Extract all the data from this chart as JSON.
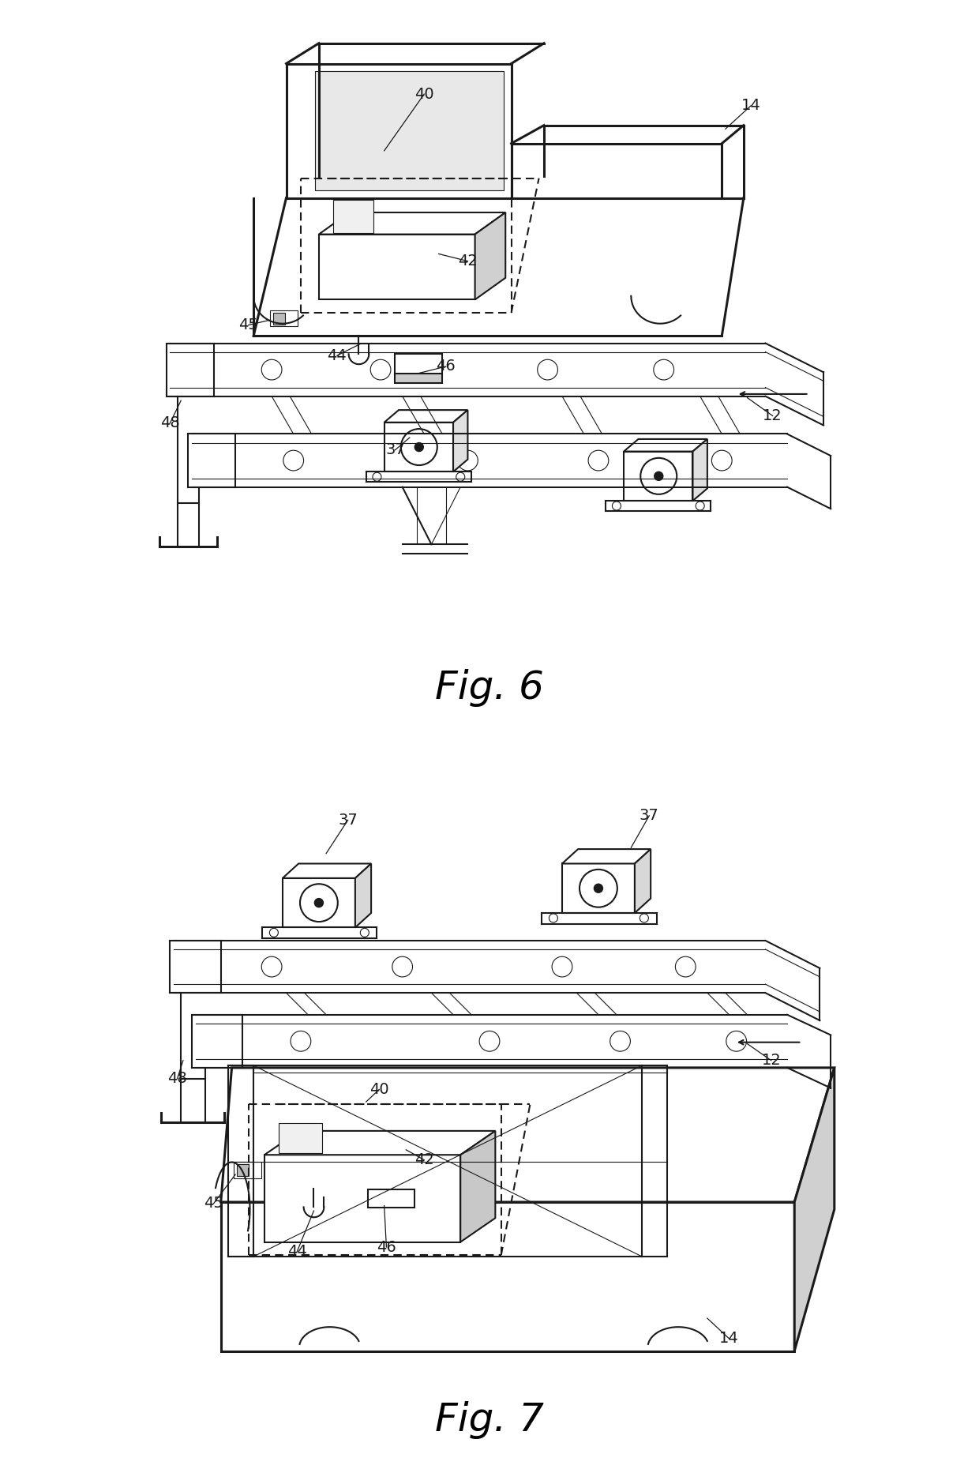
{
  "fig6_label": "Fig. 6",
  "fig7_label": "Fig. 7",
  "background_color": "#ffffff",
  "line_color": "#1a1a1a",
  "label_color": "#1a1a1a",
  "font_size_label": 14,
  "font_size_fig": 36
}
